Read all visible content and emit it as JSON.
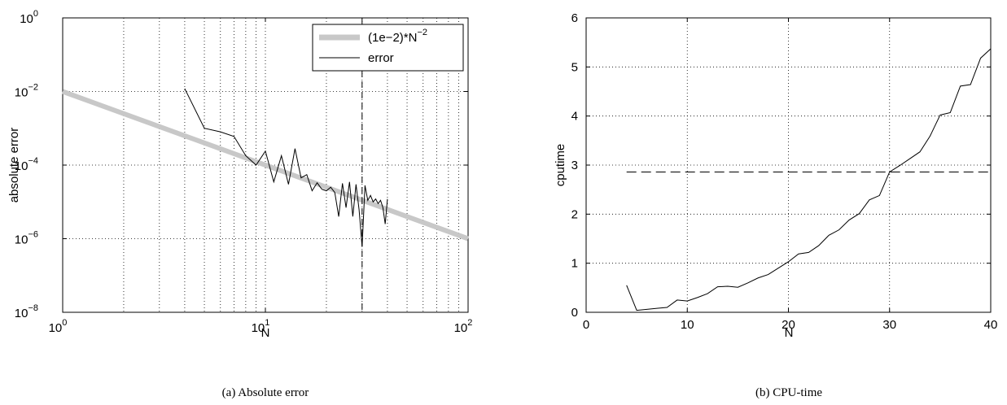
{
  "chart_data": [
    {
      "type": "line",
      "caption": "(a)  Absolute error",
      "xlabel": "N",
      "ylabel": "absolute error",
      "xscale": "log",
      "yscale": "log",
      "xlim": [
        1,
        100
      ],
      "ylim": [
        1e-08,
        1
      ],
      "x_ticks": [
        {
          "base": "10",
          "exp": "0"
        },
        {
          "base": "10",
          "exp": "1"
        },
        {
          "base": "10",
          "exp": "2"
        }
      ],
      "y_ticks": [
        {
          "base": "10",
          "exp": "−8"
        },
        {
          "base": "10",
          "exp": "−6"
        },
        {
          "base": "10",
          "exp": "−4"
        },
        {
          "base": "10",
          "exp": "−2"
        },
        {
          "base": "10",
          "exp": "0"
        }
      ],
      "grid": true,
      "legend_position": "top-right",
      "vline_x": 30,
      "series": [
        {
          "name": "(1e−2)*N",
          "name_sup": "−2",
          "color": "#c8c8c8",
          "x": [
            1,
            100
          ],
          "y": [
            0.01,
            1e-06
          ]
        },
        {
          "name": "error",
          "color": "#000000",
          "x": [
            4,
            5,
            6,
            7,
            8,
            9,
            10,
            11,
            12,
            13,
            14,
            15,
            16,
            17,
            18,
            19,
            20,
            21,
            22,
            23,
            24,
            25,
            26,
            27,
            28,
            29,
            30,
            31,
            32,
            33,
            34,
            35,
            36,
            37,
            38,
            39,
            40
          ],
          "y": [
            0.012,
            0.001,
            0.0008,
            0.0006,
            0.00018,
            0.0001,
            0.00024,
            3.5e-05,
            0.00018,
            3e-05,
            0.00028,
            4.5e-05,
            5.5e-05,
            2e-05,
            3.3e-05,
            2.2e-05,
            2e-05,
            2.5e-05,
            1.8e-05,
            4e-06,
            3.2e-05,
            7e-06,
            3.5e-05,
            4e-06,
            3e-05,
            6e-06,
            6e-07,
            2.8e-05,
            1.1e-05,
            1.5e-05,
            1e-05,
            1.2e-05,
            9e-06,
            1.1e-05,
            7e-06,
            2.5e-06,
            1.2e-05
          ]
        }
      ]
    },
    {
      "type": "line",
      "caption": "(b)  CPU-time",
      "xlabel": "N",
      "ylabel": "cputime",
      "xlim": [
        0,
        40
      ],
      "ylim": [
        0,
        6
      ],
      "x_ticks": [
        "0",
        "10",
        "20",
        "30",
        "40"
      ],
      "y_ticks": [
        "0",
        "1",
        "2",
        "3",
        "4",
        "5",
        "6"
      ],
      "grid": true,
      "hline_y": 2.86,
      "series": [
        {
          "name": "",
          "color": "#000000",
          "x": [
            4,
            5,
            6,
            7,
            8,
            9,
            10,
            11,
            12,
            13,
            14,
            15,
            16,
            17,
            18,
            19,
            20,
            21,
            22,
            23,
            24,
            25,
            26,
            27,
            28,
            29,
            30,
            31,
            32,
            33,
            34,
            35,
            36,
            37,
            38,
            39,
            40
          ],
          "y": [
            0.55,
            0.04,
            0.06,
            0.08,
            0.1,
            0.25,
            0.23,
            0.3,
            0.38,
            0.52,
            0.53,
            0.51,
            0.6,
            0.7,
            0.77,
            0.9,
            1.03,
            1.19,
            1.22,
            1.36,
            1.57,
            1.68,
            1.88,
            2.01,
            2.29,
            2.38,
            2.86,
            2.99,
            3.13,
            3.27,
            3.59,
            4.02,
            4.07,
            4.61,
            4.64,
            5.18,
            5.37
          ]
        }
      ]
    }
  ]
}
